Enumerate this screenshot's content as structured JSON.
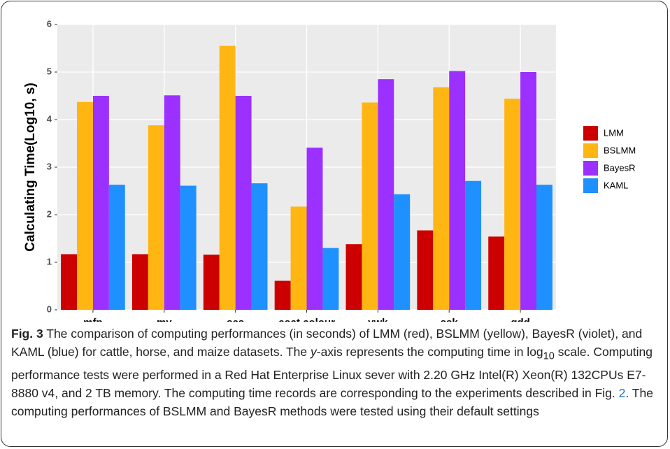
{
  "chart_data": {
    "type": "bar",
    "ylabel": "Calculating Time(Log10, s)",
    "categories": [
      "mfp",
      "my",
      "scs",
      "coat colour",
      "ywk",
      "ssk",
      "gdd"
    ],
    "series": [
      {
        "name": "LMM",
        "color": "#cc0000",
        "values": [
          1.17,
          1.17,
          1.16,
          0.61,
          1.38,
          1.67,
          1.54
        ]
      },
      {
        "name": "BSLMM",
        "color": "#ffb612",
        "values": [
          4.37,
          3.88,
          5.55,
          2.17,
          4.36,
          4.68,
          4.44
        ]
      },
      {
        "name": "BayesR",
        "color": "#9b30ff",
        "values": [
          4.5,
          4.51,
          4.5,
          3.41,
          4.85,
          5.02,
          5.0
        ]
      },
      {
        "name": "KAML",
        "color": "#1e90ff",
        "values": [
          2.63,
          2.61,
          2.66,
          1.3,
          2.43,
          2.71,
          2.63
        ]
      }
    ],
    "ylim": [
      0,
      6
    ],
    "yticks": [
      0,
      1,
      2,
      3,
      4,
      5,
      6
    ],
    "grid": true,
    "legend": "right"
  },
  "caption": {
    "label": "Fig. 3",
    "parts": [
      " The comparison of computing performances (in seconds) of LMM (red), BSLMM (yellow), BayesR (violet), and KAML (blue) for cattle, horse, and maize datasets. The ",
      "y",
      "-axis represents the computing time in log",
      "10",
      " scale. Computing performance tests were performed in a Red Hat Enterprise Linux sever with 2.20 GHz Intel(R) Xeon(R) 132CPUs E7-8880 v4, and 2 TB memory. The computing time records are corresponding to the experiments described in Fig. ",
      "2",
      ". The computing performances of BSLMM and BayesR methods were tested using their default settings"
    ]
  }
}
